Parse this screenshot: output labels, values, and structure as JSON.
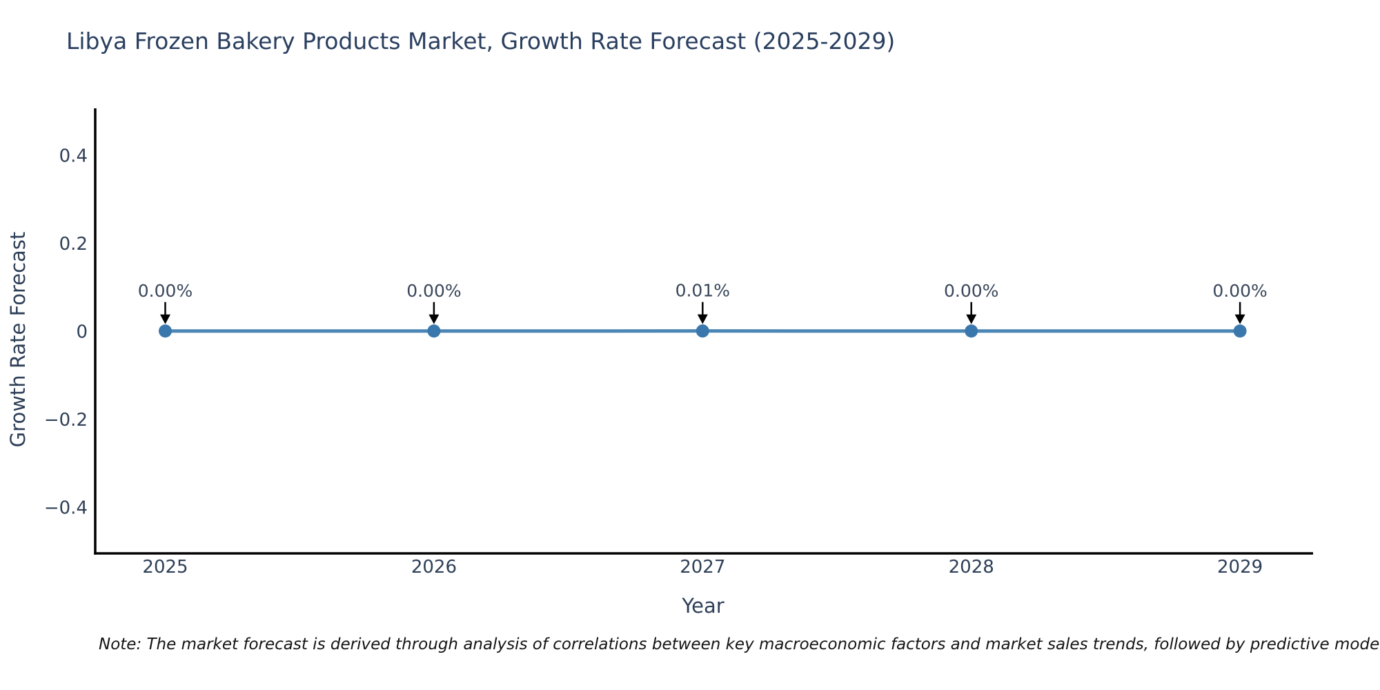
{
  "title": "Libya Frozen Bakery Products Market, Growth Rate Forecast (2025-2029)",
  "note": "Note: The market forecast is derived through analysis of correlations between key macroeconomic factors and market sales trends, followed by predictive modeling to project future sales.",
  "chart_data": {
    "type": "line",
    "x": [
      2025,
      2026,
      2027,
      2028,
      2029
    ],
    "xtick_labels": [
      "2025",
      "2026",
      "2027",
      "2028",
      "2029"
    ],
    "series": [
      {
        "name": "Growth Rate Forecast",
        "values_percent": [
          0.0,
          0.0,
          0.01,
          0.0,
          0.0
        ]
      }
    ],
    "point_labels": [
      "0.00%",
      "0.00%",
      "0.01%",
      "0.00%",
      "0.00%"
    ],
    "title": "Libya Frozen Bakery Products Market, Growth Rate Forecast (2025-2029)",
    "xlabel": "Year",
    "ylabel": "Growth Rate Forecast",
    "yticks": [
      0.4,
      0.2,
      0,
      -0.2,
      -0.4
    ],
    "ytick_labels": [
      "0.4",
      "0.2",
      "0",
      "−0.2",
      "−0.4"
    ],
    "ylim": [
      -0.5,
      0.5
    ],
    "xlim": [
      2024.74,
      2029.26
    ],
    "grid": false,
    "legend_position": "none",
    "marker_style": "circle",
    "annotation_arrow": "down",
    "colors": {
      "line": "#4b86b4",
      "marker": "#3a77ad",
      "axis_line": "#000000",
      "tick_text": "#2e3f57",
      "title_text": "#2a3f5f",
      "annotation_text": "#39465a",
      "arrow": "#000000",
      "note_text": "#141414",
      "background": "#ffffff"
    }
  }
}
